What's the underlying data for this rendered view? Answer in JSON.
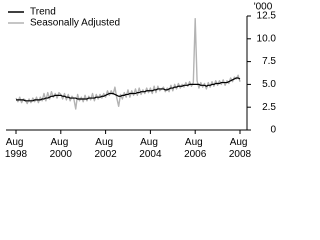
{
  "chart_data": {
    "type": "line",
    "y_unit": "'000",
    "x": [
      "1998-08",
      "1998-09",
      "1998-10",
      "1998-11",
      "1998-12",
      "1999-01",
      "1999-02",
      "1999-03",
      "1999-04",
      "1999-05",
      "1999-06",
      "1999-07",
      "1999-08",
      "1999-09",
      "1999-10",
      "1999-11",
      "1999-12",
      "2000-01",
      "2000-02",
      "2000-03",
      "2000-04",
      "2000-05",
      "2000-06",
      "2000-07",
      "2000-08",
      "2000-09",
      "2000-10",
      "2000-11",
      "2000-12",
      "2001-01",
      "2001-02",
      "2001-03",
      "2001-04",
      "2001-05",
      "2001-06",
      "2001-07",
      "2001-08",
      "2001-09",
      "2001-10",
      "2001-11",
      "2001-12",
      "2002-01",
      "2002-02",
      "2002-03",
      "2002-04",
      "2002-05",
      "2002-06",
      "2002-07",
      "2002-08",
      "2002-09",
      "2002-10",
      "2002-11",
      "2002-12",
      "2003-01",
      "2003-02",
      "2003-03",
      "2003-04",
      "2003-05",
      "2003-06",
      "2003-07",
      "2003-08",
      "2003-09",
      "2003-10",
      "2003-11",
      "2003-12",
      "2004-01",
      "2004-02",
      "2004-03",
      "2004-04",
      "2004-05",
      "2004-06",
      "2004-07",
      "2004-08",
      "2004-09",
      "2004-10",
      "2004-11",
      "2004-12",
      "2005-01",
      "2005-02",
      "2005-03",
      "2005-04",
      "2005-05",
      "2005-06",
      "2005-07",
      "2005-08",
      "2005-09",
      "2005-10",
      "2005-11",
      "2005-12",
      "2006-01",
      "2006-02",
      "2006-03",
      "2006-04",
      "2006-05",
      "2006-06",
      "2006-07",
      "2006-08",
      "2006-09",
      "2006-10",
      "2006-11",
      "2006-12",
      "2007-01",
      "2007-02",
      "2007-03",
      "2007-04",
      "2007-05",
      "2007-06",
      "2007-07",
      "2007-08",
      "2007-09",
      "2007-10",
      "2007-11",
      "2007-12",
      "2008-01",
      "2008-02",
      "2008-03",
      "2008-04",
      "2008-05",
      "2008-06",
      "2008-07",
      "2008-08"
    ],
    "series": [
      {
        "name": "Trend",
        "color": "#000000",
        "values": [
          3.3,
          3.3,
          3.3,
          3.3,
          3.3,
          3.2,
          3.2,
          3.2,
          3.2,
          3.2,
          3.3,
          3.3,
          3.3,
          3.3,
          3.4,
          3.4,
          3.5,
          3.5,
          3.6,
          3.7,
          3.7,
          3.8,
          3.8,
          3.8,
          3.8,
          3.7,
          3.7,
          3.6,
          3.6,
          3.5,
          3.5,
          3.5,
          3.5,
          3.4,
          3.4,
          3.4,
          3.4,
          3.4,
          3.4,
          3.5,
          3.5,
          3.5,
          3.5,
          3.6,
          3.6,
          3.6,
          3.7,
          3.7,
          3.8,
          3.9,
          4.0,
          4.0,
          4.0,
          3.9,
          3.8,
          3.7,
          3.7,
          3.8,
          3.8,
          3.9,
          3.9,
          4.0,
          4.0,
          4.0,
          4.0,
          4.1,
          4.1,
          4.2,
          4.2,
          4.2,
          4.3,
          4.3,
          4.3,
          4.3,
          4.4,
          4.4,
          4.5,
          4.5,
          4.5,
          4.5,
          4.4,
          4.4,
          4.5,
          4.6,
          4.6,
          4.7,
          4.7,
          4.8,
          4.8,
          4.8,
          4.9,
          4.9,
          4.9,
          5.0,
          5.0,
          5.0,
          5.0,
          5.0,
          5.0,
          4.9,
          4.9,
          4.9,
          4.8,
          4.9,
          4.9,
          5.0,
          5.0,
          5.1,
          5.1,
          5.1,
          5.2,
          5.2,
          5.2,
          5.2,
          5.3,
          5.4,
          5.5,
          5.6,
          5.7,
          5.7,
          5.6
        ]
      },
      {
        "name": "Seasonally Adjusted",
        "color": "#b3b3b3",
        "values": [
          3.5,
          3.1,
          3.6,
          3.0,
          3.4,
          3.3,
          2.9,
          3.4,
          3.0,
          3.5,
          3.1,
          3.6,
          3.0,
          3.6,
          3.2,
          4.0,
          3.2,
          4.1,
          3.4,
          4.2,
          3.6,
          4.0,
          3.5,
          4.1,
          3.9,
          3.4,
          4.0,
          3.3,
          3.9,
          3.2,
          3.7,
          3.4,
          2.3,
          3.9,
          3.2,
          3.6,
          3.1,
          3.8,
          3.2,
          3.7,
          3.3,
          4.0,
          3.2,
          3.9,
          3.4,
          3.9,
          3.5,
          4.0,
          3.6,
          4.3,
          3.8,
          4.3,
          3.9,
          4.7,
          3.5,
          2.6,
          3.9,
          3.4,
          4.1,
          3.6,
          4.4,
          3.6,
          4.3,
          3.8,
          4.5,
          3.8,
          4.6,
          3.9,
          4.4,
          4.0,
          4.6,
          4.1,
          4.6,
          4.0,
          4.8,
          4.1,
          4.8,
          4.3,
          4.5,
          4.7,
          4.2,
          4.6,
          4.2,
          4.9,
          4.3,
          5.0,
          4.5,
          5.1,
          4.6,
          5.0,
          4.7,
          5.2,
          4.8,
          5.3,
          4.8,
          5.2,
          12.2,
          5.4,
          4.6,
          5.2,
          4.7,
          5.1,
          4.5,
          5.2,
          4.7,
          5.3,
          4.8,
          5.4,
          4.9,
          5.4,
          5.0,
          5.5,
          4.9,
          5.4,
          5.1,
          5.7,
          5.3,
          5.8,
          5.6,
          6.0,
          5.3
        ]
      }
    ],
    "xticks": [
      {
        "value": "1998-08",
        "label": "Aug 1998"
      },
      {
        "value": "2000-08",
        "label": "Aug 2000"
      },
      {
        "value": "2002-08",
        "label": "Aug 2002"
      },
      {
        "value": "2004-08",
        "label": "Aug 2004"
      },
      {
        "value": "2006-08",
        "label": "Aug 2006"
      },
      {
        "value": "2008-08",
        "label": "Aug 2008"
      }
    ],
    "ylim": [
      0,
      12.5
    ],
    "yticks": [
      0,
      2.5,
      {
        "value": 5,
        "label": "5.0"
      },
      7.5,
      {
        "value": 10,
        "label": "10.0"
      },
      12.5
    ],
    "legend": "top-left"
  }
}
